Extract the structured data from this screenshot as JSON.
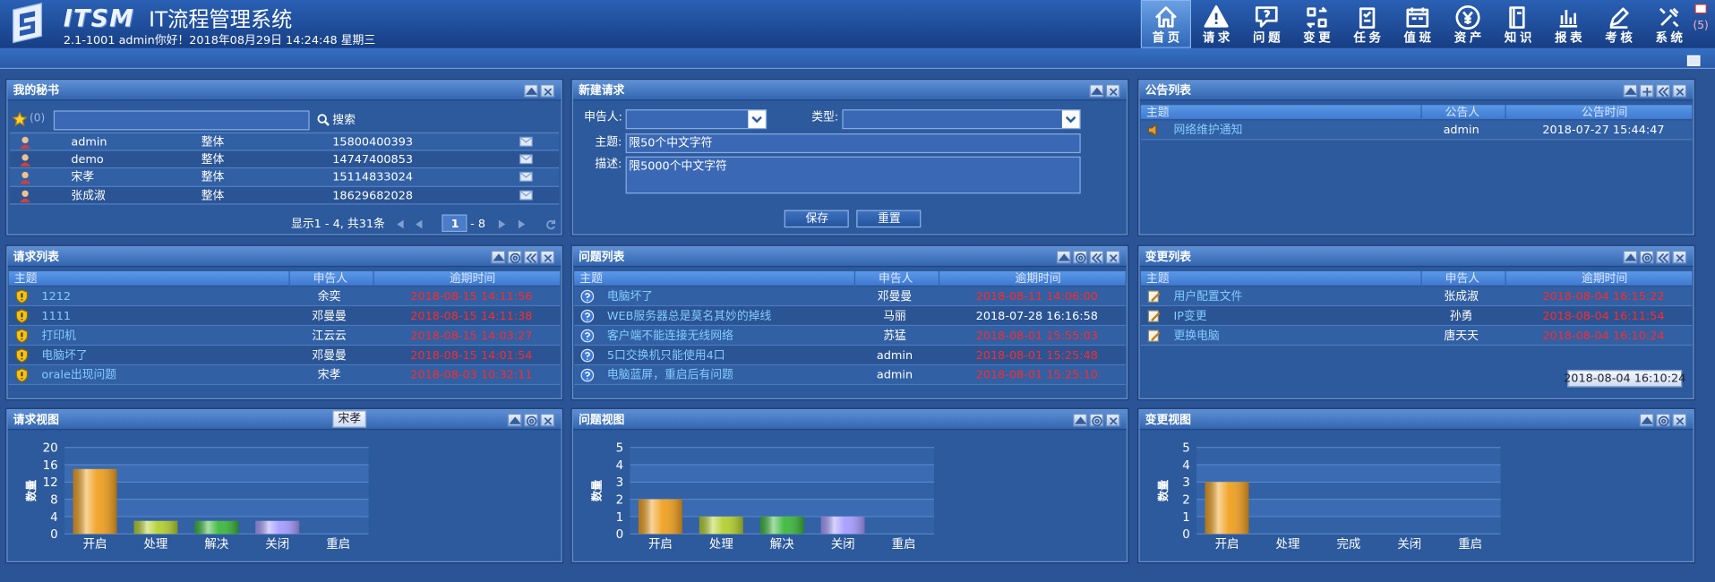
{
  "header": {
    "logo": "ITSM",
    "title": "IT流程管理系统",
    "status": "2.1-1001 admin你好！2018年08月29日 14:24:48 星期三",
    "nav": [
      "首页",
      "请求",
      "问题",
      "变更",
      "任务",
      "值班",
      "资产",
      "知识",
      "报表",
      "考核",
      "系统"
    ],
    "mail_count": "(5)"
  },
  "secretary": {
    "title": "我的秘书",
    "star_count": "(0)",
    "search": "搜索",
    "rows": [
      [
        "admin",
        "整体",
        "15800400393"
      ],
      [
        "demo",
        "整体",
        "14747400853"
      ],
      [
        "宋孝",
        "整体",
        "15114833024"
      ],
      [
        "张成淑",
        "整体",
        "18629682028"
      ]
    ],
    "pager": "显示1 - 4, 共31条",
    "page": "1",
    "page_total": "- 8"
  },
  "new_request": {
    "title": "新建请求",
    "reporter_label": "申告人:",
    "type_label": "类型:",
    "subject_label": "主题:",
    "subject_hint": "限50个中文字符",
    "desc_label": "描述:",
    "desc_hint": "限5000个中文字符",
    "save": "保存",
    "reset": "重置"
  },
  "notices": {
    "title": "公告列表",
    "columns": [
      "主题",
      "公告人",
      "公告时间"
    ],
    "rows": [
      [
        "网络维护通知",
        "admin",
        "2018-07-27 15:44:47"
      ]
    ],
    "date_colors": [
      "#ffffff"
    ]
  },
  "requests": {
    "title": "请求列表",
    "columns": [
      "主题",
      "申告人",
      "逾期时间"
    ],
    "rows": [
      [
        "1212",
        "余奕",
        "2018-08-15 14:11:56"
      ],
      [
        "1111",
        "邓曼曼",
        "2018-08-15 14:11:38"
      ],
      [
        "打印机",
        "江云云",
        "2018-08-15 14:03:27"
      ],
      [
        "电脑坏了",
        "邓曼曼",
        "2018-08-15 14:01:54"
      ],
      [
        "orale出现问题",
        "宋孝",
        "2018-08-03 10:32:11"
      ]
    ],
    "date_colors": [
      "#ff2a2a",
      "#ff2a2a",
      "#ff2a2a",
      "#ff2a2a",
      "#ff2a2a"
    ],
    "tooltip": "宋孝"
  },
  "problems": {
    "title": "问题列表",
    "columns": [
      "主题",
      "申告人",
      "逾期时间"
    ],
    "rows": [
      [
        "电脑坏了",
        "邓曼曼",
        "2018-08-11 14:06:00"
      ],
      [
        "WEB服务器总是莫名其妙的掉线",
        "马丽",
        "2018-07-28 16:16:58"
      ],
      [
        "客户端不能连接无线网络",
        "苏猛",
        "2018-08-01 15:55:03"
      ],
      [
        "5口交换机只能使用4口",
        "admin",
        "2018-08-01 15:25:48"
      ],
      [
        "电脑蓝屏，重启后有问题",
        "admin",
        "2018-08-01 15:25:10"
      ]
    ],
    "date_colors": [
      "#ff2a2a",
      "#ffffff",
      "#ff2a2a",
      "#ff2a2a",
      "#ff2a2a"
    ]
  },
  "changes": {
    "title": "变更列表",
    "columns": [
      "主题",
      "申告人",
      "逾期时间"
    ],
    "rows": [
      [
        "用户配置文件",
        "张成淑",
        "2018-08-04 16:15:22"
      ],
      [
        "IP变更",
        "孙勇",
        "2018-08-04 16:11:54"
      ],
      [
        "更换电脑",
        "唐天天",
        "2018-08-04 16:10:24"
      ]
    ],
    "date_colors": [
      "#ff2a2a",
      "#ff2a2a",
      "#ff2a2a"
    ],
    "tooltip": "2018-08-04 16:10:24"
  },
  "chart_data": [
    {
      "type": "bar",
      "title": "请求视图",
      "ylabel": "数量",
      "categories": [
        "开启",
        "处理",
        "解决",
        "关闭",
        "重启"
      ],
      "values": [
        15,
        3,
        3,
        3,
        0
      ],
      "colors": [
        "#f0a020",
        "#b4d030",
        "#3cb83c",
        "#a69cff",
        "#f0a020"
      ],
      "ylim": [
        0,
        20
      ],
      "yticks": [
        0,
        4,
        8,
        12,
        16,
        20
      ]
    },
    {
      "type": "bar",
      "title": "问题视图",
      "ylabel": "数量",
      "categories": [
        "开启",
        "处理",
        "解决",
        "关闭",
        "重启"
      ],
      "values": [
        2,
        1,
        1,
        1,
        0
      ],
      "colors": [
        "#f0a020",
        "#b4d030",
        "#3cb83c",
        "#a69cff",
        "#f0a020"
      ],
      "ylim": [
        0,
        5
      ],
      "yticks": [
        0,
        1,
        2,
        3,
        4,
        5
      ]
    },
    {
      "type": "bar",
      "title": "变更视图",
      "ylabel": "数量",
      "categories": [
        "开启",
        "处理",
        "完成",
        "关闭",
        "重启"
      ],
      "values": [
        3,
        0,
        0,
        0,
        0
      ],
      "colors": [
        "#f0a020",
        "#b4d030",
        "#3cb83c",
        "#a69cff",
        "#f0a020"
      ],
      "ylim": [
        0,
        5
      ],
      "yticks": [
        0,
        1,
        2,
        3,
        4,
        5
      ]
    }
  ]
}
